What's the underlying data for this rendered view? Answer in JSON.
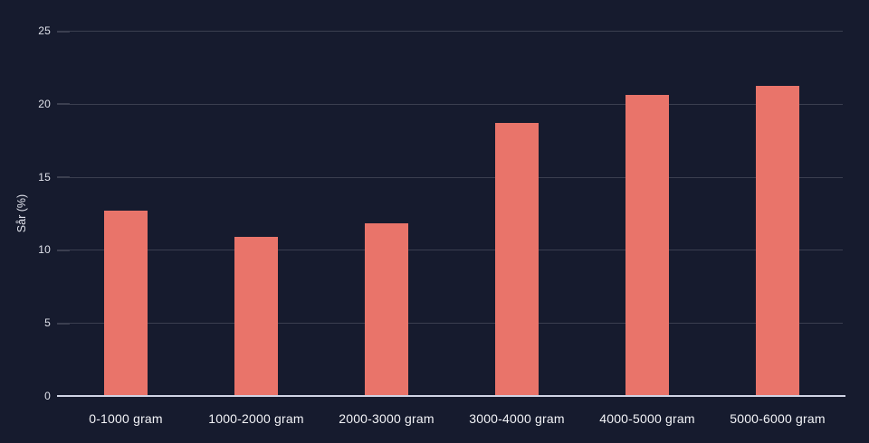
{
  "chart_data": {
    "type": "bar",
    "categories": [
      "0-1000 gram",
      "1000-2000 gram",
      "2000-3000 gram",
      "3000-4000 gram",
      "4000-5000 gram",
      "5000-6000 gram"
    ],
    "values": [
      12.7,
      10.9,
      11.8,
      18.7,
      20.6,
      21.2
    ],
    "title": "",
    "xlabel": "",
    "ylabel": "Sår (%)",
    "ylim": [
      0,
      25
    ],
    "yticks": [
      0,
      5,
      10,
      15,
      20,
      25
    ],
    "grid": "horizontal",
    "legend": "none",
    "colors": {
      "background": "#161b2e",
      "bar": "#e9746a",
      "gridline": "#3b3f50",
      "axis_line": "#cfd3e4",
      "tick_text": "#dfe1ea",
      "label_text": "#f2f3f7"
    }
  }
}
